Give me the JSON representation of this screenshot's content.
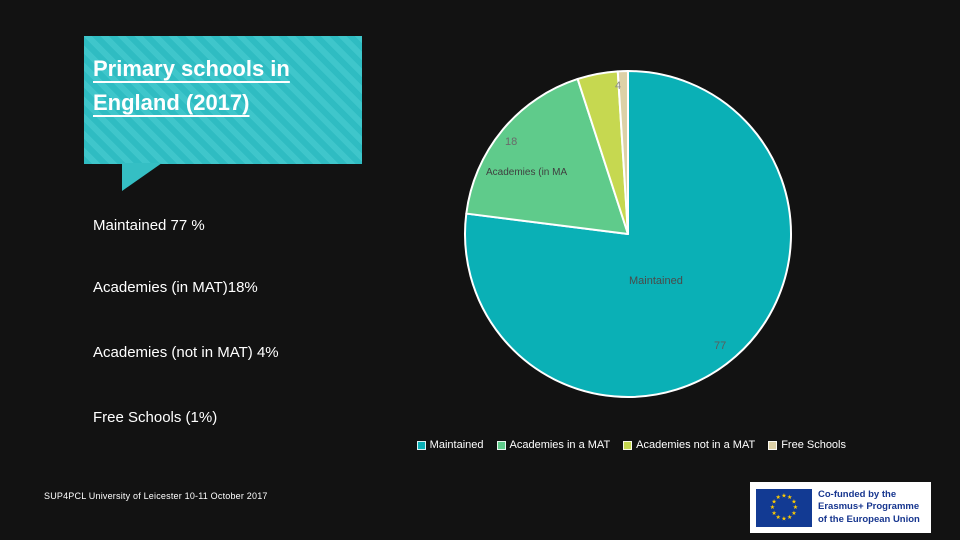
{
  "title_box": {
    "title": "Primary schools in England (2017)"
  },
  "stats": [
    {
      "label": "Maintained 77 %"
    },
    {
      "label": "Academies (in MAT)18%"
    },
    {
      "label": "Academies (not in MAT) 4%"
    },
    {
      "label": "Free Schools (1%)"
    }
  ],
  "chart_data": {
    "type": "pie",
    "title": "Primary schools in England (2017)",
    "start_angle_deg": 0,
    "direction": "clockwise",
    "legend_position": "bottom",
    "slices": [
      {
        "label": "Maintained",
        "value": 77,
        "color": "#0ab0b6"
      },
      {
        "label": "Academies in a MAT",
        "value": 18,
        "color": "#5fcb8b",
        "clipped_label": "Academies (in MA"
      },
      {
        "label": "Academies not in a MAT",
        "value": 4,
        "color": "#c6d850"
      },
      {
        "label": "Free Schools",
        "value": 1,
        "color": "#ddd1a7"
      }
    ],
    "slice_stroke_color": "#ffffff"
  },
  "legend": {
    "items": [
      {
        "label": "Maintained"
      },
      {
        "label": "Academies in a MAT"
      },
      {
        "label": "Academies not in a MAT"
      },
      {
        "label": "Free Schools"
      }
    ]
  },
  "footer": {
    "credit": "SUP4PCL University of Leicester 10-11 October 2017"
  },
  "eu_logo": {
    "lines": [
      "Co-funded by the",
      "Erasmus+ Programme",
      "of the European Union"
    ],
    "flag_color": "#123a93",
    "star_color": "#ffcc00"
  }
}
